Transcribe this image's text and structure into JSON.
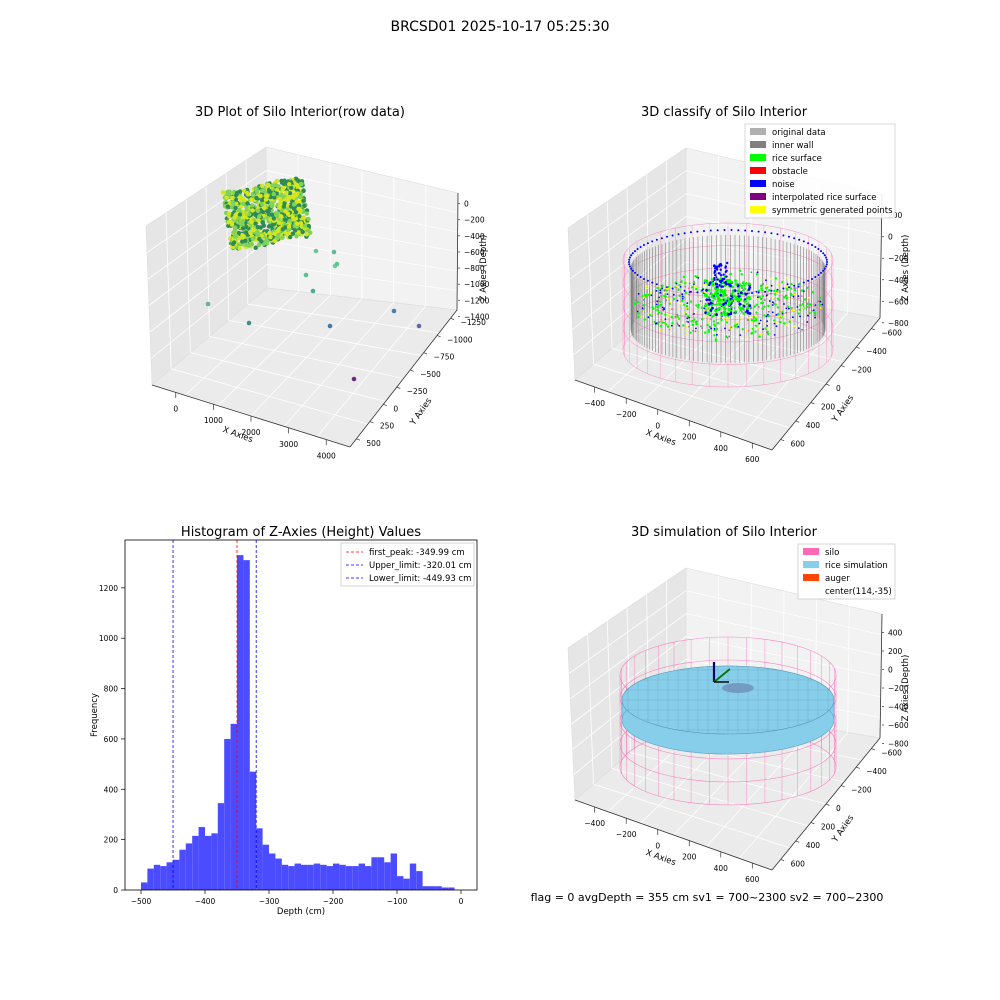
{
  "figure": {
    "title": "BRCSD01 2025-10-17 05:25:30",
    "footer_text": "flag = 0     avgDepth = 355 cm  sv1 = 700~2300  sv2 = 700~2300"
  },
  "colors": {
    "histogram_bar": "#4b4bff",
    "first_peak_line": "#ff0000",
    "limit_lines": "#0000ff",
    "silo_wire": "#ff69b4",
    "rice_surface_fill": "#87ceeb",
    "auger": "#ff4500",
    "raw_points_gradient": [
      "#2e8b57",
      "#7fd35a",
      "#d4e61e"
    ],
    "pane_back": "#f2f2f2",
    "pane_side": "#e6e6e6",
    "pane_floor": "#ebebeb",
    "grid": "#ffffff"
  },
  "chart_data": [
    {
      "id": "raw",
      "type": "scatter",
      "title": "3D Plot of Silo Interior(row data)",
      "xlabel": "X Axies",
      "ylabel": "Y Axies",
      "zlabel": "Z Axies (Depth)",
      "x_ticks": [
        "0",
        "1000",
        "2000",
        "3000",
        "4000"
      ],
      "y_ticks": [
        "500",
        "250",
        "0",
        "−250",
        "−500",
        "−750",
        "−1000",
        "−1250"
      ],
      "z_ticks": [
        "0",
        "−200",
        "−400",
        "−600",
        "−800",
        "−1000",
        "−1200",
        "−1400"
      ],
      "outlier_points_approx": [
        {
          "x": 900,
          "y": 0,
          "z": -1400
        },
        {
          "x": 1100,
          "y": 300,
          "z": -1200
        },
        {
          "x": 1300,
          "y": 200,
          "z": -1050
        },
        {
          "x": 1500,
          "y": 350,
          "z": -900
        },
        {
          "x": 1700,
          "y": 400,
          "z": -800
        },
        {
          "x": 2900,
          "y": 100,
          "z": -1400
        },
        {
          "x": 3300,
          "y": -300,
          "z": -1300
        }
      ]
    },
    {
      "id": "classify",
      "type": "scatter",
      "title": "3D classify of Silo Interior",
      "xlabel": "X Axies",
      "ylabel": "Y Axies",
      "zlabel": "Z Axies (Depth)",
      "x_ticks": [
        "−400",
        "−200",
        "0",
        "200",
        "400",
        "600"
      ],
      "y_ticks": [
        "600",
        "400",
        "200",
        "0",
        "−200",
        "−400",
        "−600"
      ],
      "z_ticks": [
        "200",
        "0",
        "−200",
        "−400",
        "−600",
        "−800"
      ],
      "legend": [
        {
          "label": "original data",
          "color": "#b0b0b0"
        },
        {
          "label": "inner wall",
          "color": "#808080"
        },
        {
          "label": "rice surface",
          "color": "#00ff00"
        },
        {
          "label": "obstacle",
          "color": "#ff0000"
        },
        {
          "label": "noise",
          "color": "#0000ff"
        },
        {
          "label": "interpolated rice surface",
          "color": "#800080"
        },
        {
          "label": "symmetric generated points",
          "color": "#ffff00"
        }
      ]
    },
    {
      "id": "hist",
      "type": "bar",
      "title": "Histogram of Z-Axies (Height) Values",
      "xlabel": "Depth (cm)",
      "ylabel": "Frequency",
      "xlim": [
        -525,
        25
      ],
      "ylim": [
        0,
        1390
      ],
      "x_ticks": [
        -500,
        -400,
        -300,
        -200,
        -100,
        0
      ],
      "y_ticks": [
        0,
        200,
        400,
        600,
        800,
        1000,
        1200
      ],
      "bin_edges_start": -500,
      "bin_width": 10,
      "values": [
        30,
        85,
        100,
        95,
        110,
        120,
        160,
        185,
        215,
        250,
        215,
        225,
        345,
        600,
        660,
        1330,
        1310,
        470,
        245,
        180,
        145,
        125,
        100,
        95,
        105,
        100,
        100,
        105,
        100,
        95,
        105,
        100,
        95,
        95,
        105,
        95,
        130,
        130,
        110,
        145,
        55,
        45,
        105,
        75,
        15,
        15,
        15,
        10,
        10
      ],
      "vlines": [
        {
          "x": -349.99,
          "label": "first_peak: -349.99 cm",
          "style": "red"
        },
        {
          "x": -320.01,
          "label": "Upper_limit: -320.01 cm",
          "style": "blue"
        },
        {
          "x": -449.93,
          "label": "Lower_limit: -449.93 cm",
          "style": "blue"
        }
      ]
    },
    {
      "id": "sim",
      "type": "area",
      "title": "3D simulation of Silo Interior",
      "xlabel": "X Axies",
      "ylabel": "Y Axies",
      "zlabel": "Z Axies (Depth)",
      "x_ticks": [
        "−400",
        "−200",
        "0",
        "200",
        "400",
        "600"
      ],
      "y_ticks": [
        "600",
        "400",
        "200",
        "0",
        "−200",
        "−400",
        "−600"
      ],
      "z_ticks": [
        "400",
        "200",
        "0",
        "−200",
        "−400",
        "−600",
        "−800"
      ],
      "legend": [
        {
          "label": "silo",
          "color": "#ff69b4"
        },
        {
          "label": "rice simulation",
          "color": "#87ceeb"
        },
        {
          "label": "auger",
          "color": "#ff4500"
        },
        {
          "label": "center(114,-35)",
          "color": ""
        }
      ]
    }
  ]
}
